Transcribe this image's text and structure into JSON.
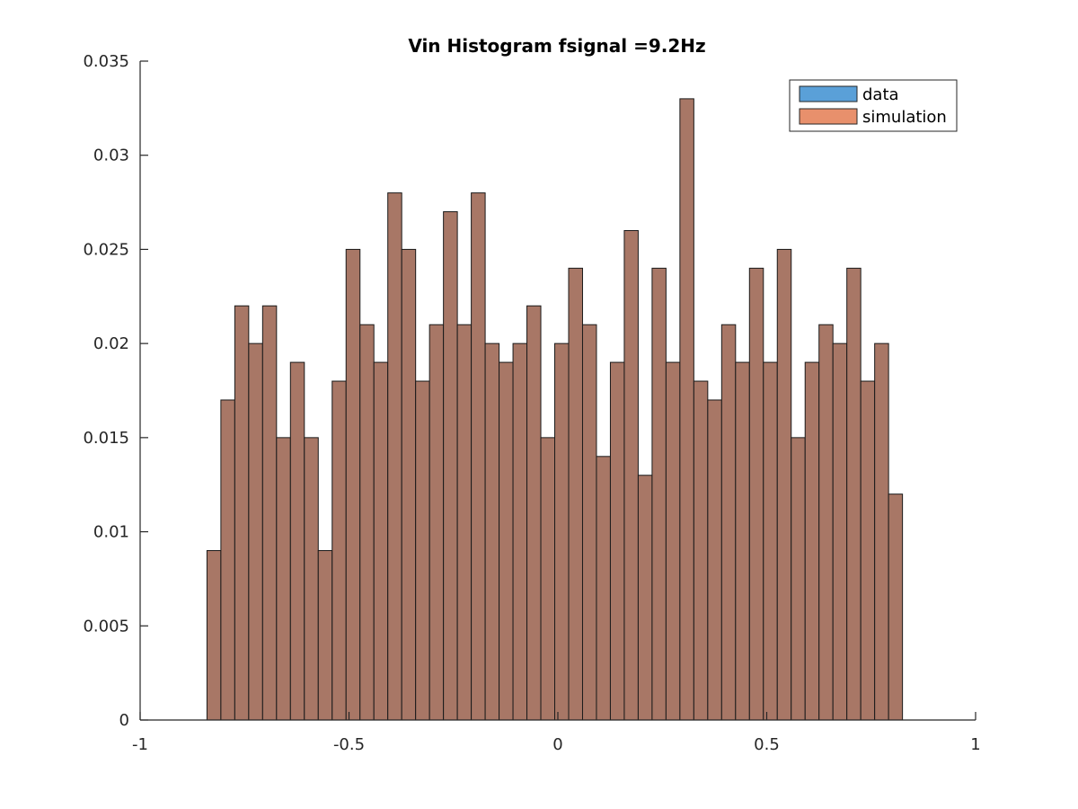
{
  "chart_data": {
    "type": "bar",
    "title": "Vin Histogram fsignal =9.2Hz",
    "xlabel": "",
    "ylabel": "",
    "xlim": [
      -1,
      1
    ],
    "ylim": [
      0,
      0.035
    ],
    "xticks": [
      -1,
      -0.5,
      0,
      0.5,
      1
    ],
    "xtick_labels": [
      "-1",
      "-0.5",
      "0",
      "0.5",
      "1"
    ],
    "yticks": [
      0,
      0.005,
      0.01,
      0.015,
      0.02,
      0.025,
      0.03,
      0.035
    ],
    "ytick_labels": [
      "0",
      "0.005",
      "0.01",
      "0.015",
      "0.02",
      "0.025",
      "0.03",
      "0.035"
    ],
    "grid": false,
    "legend_position": "top-right",
    "bin_edges_start": -0.84,
    "bin_width": 0.0333,
    "series": [
      {
        "name": "data",
        "color": "#5aa0d8",
        "values": [
          0.009,
          0.017,
          0.022,
          0.02,
          0.022,
          0.015,
          0.019,
          0.015,
          0.009,
          0.018,
          0.025,
          0.021,
          0.019,
          0.028,
          0.025,
          0.018,
          0.021,
          0.027,
          0.021,
          0.028,
          0.02,
          0.019,
          0.02,
          0.022,
          0.015,
          0.02,
          0.024,
          0.021,
          0.014,
          0.019,
          0.026,
          0.013,
          0.024,
          0.019,
          0.033,
          0.018,
          0.017,
          0.021,
          0.019,
          0.024,
          0.019,
          0.025,
          0.015,
          0.019,
          0.021,
          0.02,
          0.024,
          0.018,
          0.02,
          0.012
        ]
      },
      {
        "name": "simulation",
        "color": "#e8906c",
        "values": [
          0.009,
          0.017,
          0.022,
          0.02,
          0.022,
          0.015,
          0.019,
          0.015,
          0.009,
          0.018,
          0.025,
          0.021,
          0.019,
          0.028,
          0.025,
          0.018,
          0.021,
          0.027,
          0.021,
          0.028,
          0.02,
          0.019,
          0.02,
          0.022,
          0.015,
          0.02,
          0.024,
          0.021,
          0.014,
          0.019,
          0.026,
          0.013,
          0.024,
          0.019,
          0.033,
          0.018,
          0.017,
          0.021,
          0.019,
          0.024,
          0.019,
          0.025,
          0.015,
          0.019,
          0.021,
          0.02,
          0.024,
          0.018,
          0.02,
          0.012
        ]
      }
    ],
    "overlap_color": "#a87766"
  }
}
